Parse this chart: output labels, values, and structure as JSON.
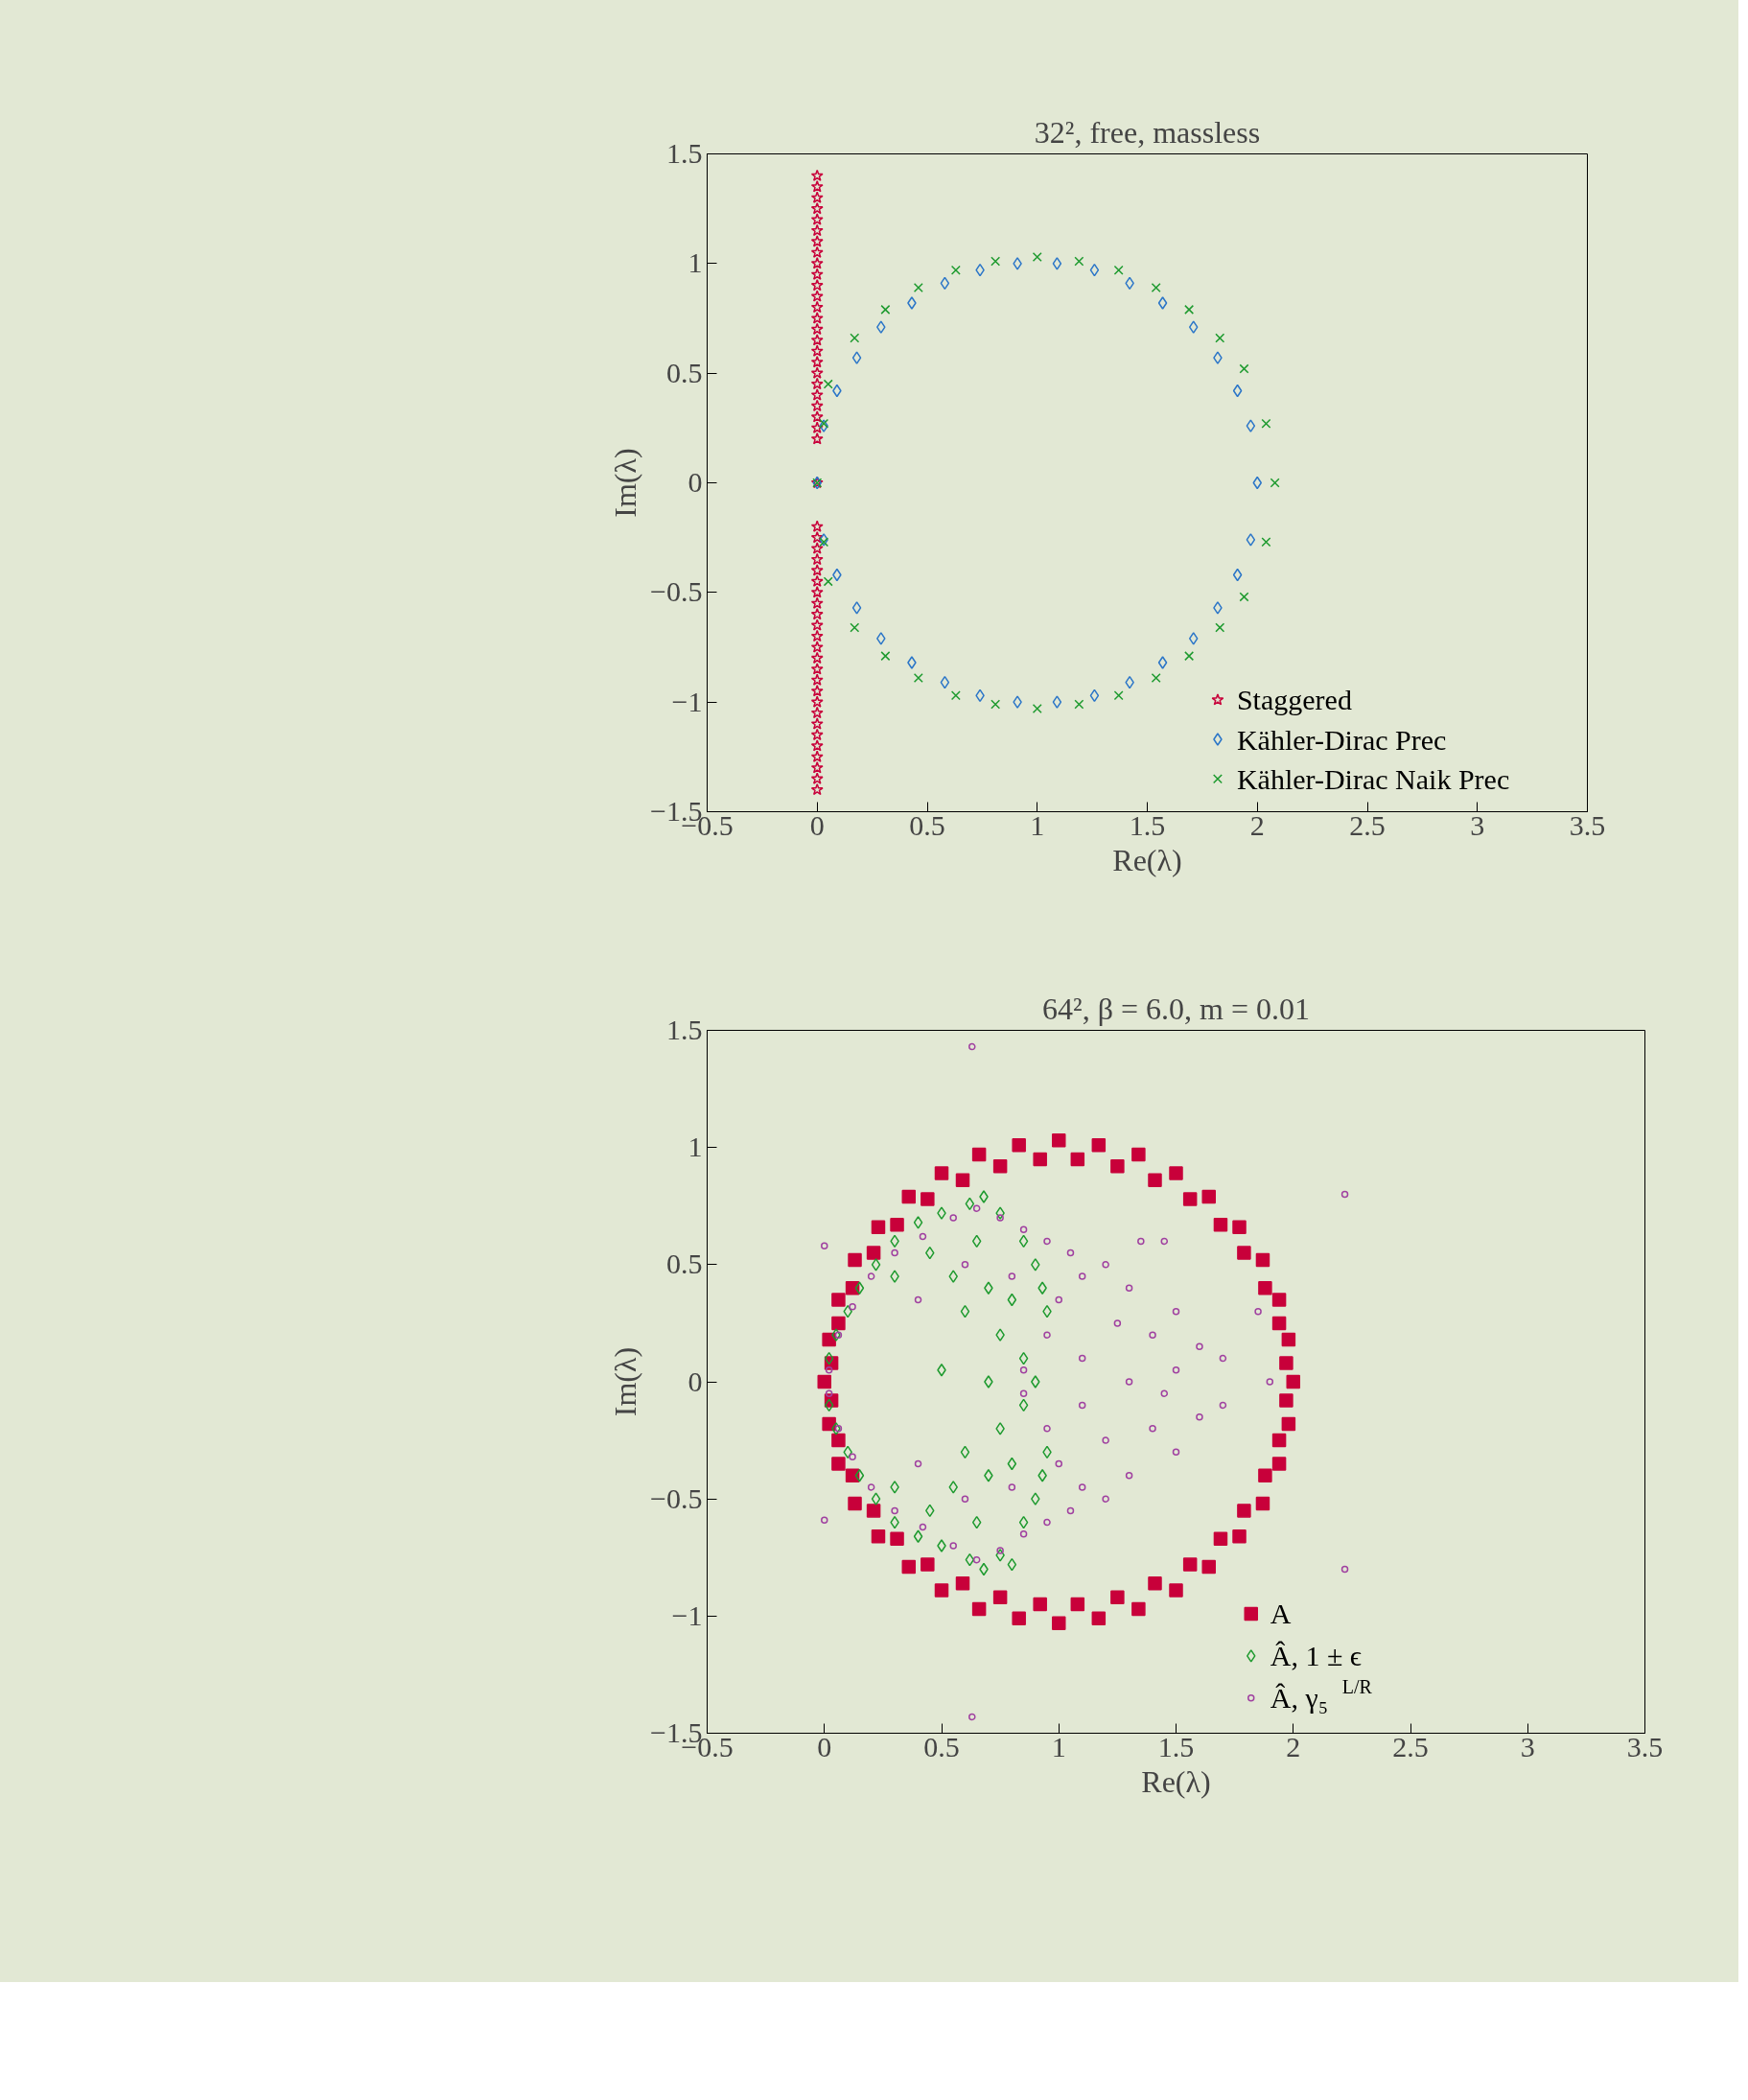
{
  "chart_data": [
    {
      "type": "scatter",
      "title": "32², free, massless",
      "xlabel": "Re(λ)",
      "ylabel": "Im(λ)",
      "xlim": [
        -0.5,
        3.5
      ],
      "ylim": [
        -1.5,
        1.5
      ],
      "xticks": [
        {
          "value": -0.5,
          "label": "−0.5"
        },
        0,
        0.5,
        1,
        1.5,
        2,
        2.5,
        3,
        3.5
      ],
      "yticks": [
        {
          "value": -1.5,
          "label": "−1.5"
        },
        {
          "value": -1,
          "label": "−1"
        },
        {
          "value": -0.5,
          "label": "−0.5"
        },
        0,
        0.5,
        1,
        1.5
      ],
      "grid": false,
      "legend": "bottom right",
      "series": [
        {
          "name": "Staggered",
          "color": "#c8003a",
          "marker": "star",
          "x": [
            0,
            0,
            0,
            0,
            0,
            0,
            0,
            0,
            0,
            0,
            0,
            0,
            0,
            0,
            0,
            0,
            0,
            0,
            0,
            0,
            0,
            0,
            0,
            0,
            0,
            0,
            0,
            0,
            0,
            0,
            0,
            0,
            0,
            0,
            0,
            0,
            0,
            0,
            0,
            0,
            0,
            0,
            0,
            0,
            0,
            0,
            0,
            0,
            0,
            0,
            0
          ],
          "values": [
            0,
            0.2,
            0.25,
            0.3,
            0.35,
            0.4,
            0.45,
            0.5,
            0.55,
            0.6,
            0.65,
            0.7,
            0.75,
            0.8,
            0.85,
            0.9,
            0.95,
            1.0,
            1.05,
            1.1,
            1.15,
            1.2,
            1.25,
            1.3,
            1.35,
            1.4,
            -0.2,
            -0.25,
            -0.3,
            -0.35,
            -0.4,
            -0.45,
            -0.5,
            -0.55,
            -0.6,
            -0.65,
            -0.7,
            -0.75,
            -0.8,
            -0.85,
            -0.9,
            -0.95,
            -1.0,
            -1.05,
            -1.1,
            -1.15,
            -1.2,
            -1.25,
            -1.3,
            -1.35,
            -1.4
          ]
        },
        {
          "name": "Kähler-Dirac Prec",
          "color": "#2a75c8",
          "marker": "diamond",
          "x": [
            2.0,
            1.97,
            1.91,
            1.82,
            1.71,
            1.57,
            1.42,
            1.26,
            1.09,
            0.91,
            0.74,
            0.58,
            0.43,
            0.29,
            0.18,
            0.09,
            0.03,
            0,
            1.97,
            1.91,
            1.82,
            1.71,
            1.57,
            1.42,
            1.26,
            1.09,
            0.91,
            0.74,
            0.58,
            0.43,
            0.29,
            0.18,
            0.09,
            0.03
          ],
          "values": [
            0,
            0.26,
            0.42,
            0.57,
            0.71,
            0.82,
            0.91,
            0.97,
            1.0,
            1.0,
            0.97,
            0.91,
            0.82,
            0.71,
            0.57,
            0.42,
            0.26,
            0,
            -0.26,
            -0.42,
            -0.57,
            -0.71,
            -0.82,
            -0.91,
            -0.97,
            -1.0,
            -1.0,
            -0.97,
            -0.91,
            -0.82,
            -0.71,
            -0.57,
            -0.42,
            -0.26
          ]
        },
        {
          "name": "Kähler-Dirac Naik Prec",
          "color": "#1d9a2e",
          "marker": "cross",
          "x": [
            2.08,
            2.04,
            1.94,
            1.83,
            1.69,
            1.54,
            1.37,
            1.19,
            1.0,
            0.81,
            0.63,
            0.46,
            0.31,
            0.17,
            0.05,
            0.03,
            0,
            2.04,
            1.94,
            1.83,
            1.69,
            1.54,
            1.37,
            1.19,
            1.0,
            0.81,
            0.63,
            0.46,
            0.31,
            0.17,
            0.05,
            0.03
          ],
          "values": [
            0,
            0.27,
            0.52,
            0.66,
            0.79,
            0.89,
            0.97,
            1.01,
            1.03,
            1.01,
            0.97,
            0.89,
            0.79,
            0.66,
            0.45,
            0.27,
            0,
            -0.27,
            -0.52,
            -0.66,
            -0.79,
            -0.89,
            -0.97,
            -1.01,
            -1.03,
            -1.01,
            -0.97,
            -0.89,
            -0.79,
            -0.66,
            -0.45,
            -0.27
          ]
        }
      ]
    },
    {
      "type": "scatter",
      "title": "64², β = 6.0, m = 0.01",
      "xlabel": "Re(λ)",
      "ylabel": "Im(λ)",
      "xlim": [
        -0.5,
        3.5
      ],
      "ylim": [
        -1.5,
        1.5
      ],
      "xticks": [
        {
          "value": -0.5,
          "label": "−0.5"
        },
        0,
        0.5,
        1,
        1.5,
        2,
        2.5,
        3,
        3.5
      ],
      "yticks": [
        {
          "value": -1.5,
          "label": "−1.5"
        },
        {
          "value": -1,
          "label": "−1"
        },
        {
          "value": -0.5,
          "label": "−0.5"
        },
        0,
        0.5,
        1,
        1.5
      ],
      "grid": false,
      "legend": "bottom right",
      "series": [
        {
          "name": "A",
          "color": "#c8003a",
          "marker": "square",
          "x": [
            2.0,
            1.98,
            1.94,
            1.87,
            1.77,
            1.64,
            1.5,
            1.34,
            1.17,
            1.0,
            0.83,
            0.66,
            0.5,
            0.36,
            0.23,
            0.13,
            0.06,
            0.02,
            0.0,
            0.02,
            0.06,
            0.13,
            0.23,
            0.36,
            0.5,
            0.66,
            0.83,
            1.0,
            1.17,
            1.34,
            1.5,
            1.64,
            1.77,
            1.87,
            1.94,
            1.98,
            1.97,
            1.94,
            1.88,
            1.79,
            1.69,
            1.56,
            1.41,
            1.25,
            1.08,
            0.92,
            0.75,
            0.59,
            0.44,
            0.31,
            0.21,
            0.12,
            0.06,
            0.03,
            0.03,
            0.06,
            0.12,
            0.21,
            0.31,
            0.44,
            0.59,
            0.75,
            0.92,
            1.08,
            1.25,
            1.41,
            1.56,
            1.69,
            1.79,
            1.88,
            1.94,
            1.97
          ],
          "values": [
            0,
            0.18,
            0.35,
            0.52,
            0.66,
            0.79,
            0.89,
            0.97,
            1.01,
            1.03,
            1.01,
            0.97,
            0.89,
            0.79,
            0.66,
            0.52,
            0.35,
            0.18,
            0,
            -0.18,
            -0.35,
            -0.52,
            -0.66,
            -0.79,
            -0.89,
            -0.97,
            -1.01,
            -1.03,
            -1.01,
            -0.97,
            -0.89,
            -0.79,
            -0.66,
            -0.52,
            -0.35,
            -0.18,
            0.08,
            0.25,
            0.4,
            0.55,
            0.67,
            0.78,
            0.86,
            0.92,
            0.95,
            0.95,
            0.92,
            0.86,
            0.78,
            0.67,
            0.55,
            0.4,
            0.25,
            0.08,
            -0.08,
            -0.25,
            -0.4,
            -0.55,
            -0.67,
            -0.78,
            -0.86,
            -0.92,
            -0.95,
            -0.95,
            -0.92,
            -0.86,
            -0.78,
            -0.67,
            -0.55,
            -0.4,
            -0.25,
            -0.08
          ]
        },
        {
          "name": "Â, 1 ± ϵ",
          "color": "#1d9a2e",
          "marker": "diamond",
          "x": [
            0.02,
            0.05,
            0.1,
            0.15,
            0.22,
            0.3,
            0.4,
            0.5,
            0.62,
            0.68,
            0.75,
            0.85,
            0.9,
            0.93,
            0.95,
            0.3,
            0.45,
            0.55,
            0.65,
            0.7,
            0.8,
            0.6,
            0.75,
            0.85,
            0.9,
            0.5,
            0.7,
            0.02,
            0.05,
            0.1,
            0.15,
            0.22,
            0.3,
            0.4,
            0.5,
            0.62,
            0.68,
            0.75,
            0.8,
            0.85,
            0.9,
            0.93,
            0.95,
            0.3,
            0.45,
            0.55,
            0.65,
            0.7,
            0.8,
            0.6,
            0.75,
            0.85
          ],
          "values": [
            0.1,
            0.2,
            0.3,
            0.4,
            0.5,
            0.6,
            0.68,
            0.72,
            0.76,
            0.79,
            0.72,
            0.6,
            0.5,
            0.4,
            0.3,
            0.45,
            0.55,
            0.45,
            0.6,
            0.4,
            0.35,
            0.3,
            0.2,
            0.1,
            0.0,
            0.05,
            0.0,
            -0.1,
            -0.2,
            -0.3,
            -0.4,
            -0.5,
            -0.6,
            -0.66,
            -0.7,
            -0.76,
            -0.8,
            -0.74,
            -0.78,
            -0.6,
            -0.5,
            -0.4,
            -0.3,
            -0.45,
            -0.55,
            -0.45,
            -0.6,
            -0.4,
            -0.35,
            -0.3,
            -0.2,
            -0.1
          ]
        },
        {
          "name": "Â, γ₅$^{L/R}$",
          "color": "#a040a0",
          "marker": "circle",
          "x": [
            0.02,
            0.06,
            0.12,
            0.2,
            0.3,
            0.42,
            0.55,
            0.65,
            0.75,
            0.85,
            0.95,
            1.05,
            1.1,
            1.2,
            1.3,
            1.35,
            1.25,
            1.4,
            1.5,
            1.6,
            1.7,
            1.85,
            1.9,
            1.5,
            1.3,
            1.1,
            0.95,
            0.8,
            0.6,
            0.4,
            0.0,
            0.63,
            2.22,
            1.45,
            1.0,
            0.85,
            0.02,
            0.06,
            0.12,
            0.2,
            0.3,
            0.42,
            0.55,
            0.65,
            0.75,
            0.85,
            0.95,
            1.05,
            1.1,
            1.2,
            1.3,
            1.2,
            1.4,
            1.5,
            1.6,
            1.7,
            1.45,
            1.1,
            0.95,
            0.8,
            0.6,
            0.4,
            0.0,
            0.63,
            2.22,
            1.0,
            0.85
          ],
          "values": [
            0.05,
            0.2,
            0.32,
            0.45,
            0.55,
            0.62,
            0.7,
            0.74,
            0.7,
            0.65,
            0.6,
            0.55,
            0.45,
            0.5,
            0.4,
            0.6,
            0.25,
            0.2,
            0.3,
            0.15,
            0.1,
            0.3,
            0.0,
            0.05,
            0.0,
            0.1,
            0.2,
            0.45,
            0.5,
            0.35,
            0.58,
            1.43,
            0.8,
            0.6,
            0.35,
            0.05,
            -0.05,
            -0.2,
            -0.32,
            -0.45,
            -0.55,
            -0.62,
            -0.7,
            -0.76,
            -0.72,
            -0.65,
            -0.6,
            -0.55,
            -0.45,
            -0.5,
            -0.4,
            -0.25,
            -0.2,
            -0.3,
            -0.15,
            -0.1,
            -0.05,
            -0.1,
            -0.2,
            -0.45,
            -0.5,
            -0.35,
            -0.59,
            -1.43,
            -0.8,
            -0.35,
            -0.05
          ]
        }
      ]
    }
  ]
}
